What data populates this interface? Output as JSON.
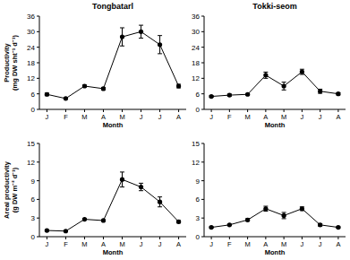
{
  "chart_data": [
    {
      "type": "line",
      "title": "Tongbatarl",
      "y_label": [
        "Productivity",
        "(mg DW sht⁻¹ d⁻¹)"
      ],
      "x_label": "Month",
      "categories": [
        "J",
        "F",
        "M",
        "A",
        "M",
        "J",
        "J",
        "A"
      ],
      "values": [
        5.8,
        4.2,
        9.0,
        8.0,
        28.0,
        30.0,
        25.0,
        9.0
      ],
      "errors": [
        0.5,
        0.3,
        0.4,
        0.5,
        3.5,
        2.5,
        3.5,
        0.7
      ],
      "ylim": [
        0,
        36
      ],
      "yticks": [
        0,
        6,
        12,
        18,
        24,
        30,
        36
      ],
      "color": "#000000",
      "marker": "circle",
      "line_style": "solid"
    },
    {
      "type": "line",
      "title": "Tokki-seom",
      "x_label": "Month",
      "categories": [
        "J",
        "F",
        "M",
        "A",
        "M",
        "J",
        "J",
        "A"
      ],
      "values": [
        5.0,
        5.5,
        5.8,
        13.2,
        9.0,
        14.5,
        7.0,
        6.0
      ],
      "errors": [
        0.3,
        0.4,
        0.3,
        1.2,
        1.5,
        1.0,
        0.8,
        0.4
      ],
      "ylim": [
        0,
        36
      ],
      "yticks": [
        0,
        6,
        12,
        18,
        24,
        30,
        36
      ],
      "color": "#000000",
      "marker": "circle",
      "line_style": "solid"
    },
    {
      "type": "line",
      "y_label": [
        "Areal productivity",
        "(g DW m⁻² d⁻¹)"
      ],
      "x_label": "Month",
      "categories": [
        "J",
        "F",
        "M",
        "A",
        "M",
        "J",
        "J",
        "A"
      ],
      "values": [
        1.0,
        0.9,
        2.8,
        2.6,
        9.2,
        8.0,
        5.6,
        2.4
      ],
      "errors": [
        0.1,
        0.1,
        0.1,
        0.1,
        1.2,
        0.6,
        0.8,
        0.2
      ],
      "ylim": [
        0,
        15
      ],
      "yticks": [
        0,
        3,
        6,
        9,
        12,
        15
      ],
      "color": "#000000",
      "marker": "circle",
      "line_style": "solid"
    },
    {
      "type": "line",
      "x_label": "Month",
      "categories": [
        "J",
        "F",
        "M",
        "A",
        "M",
        "J",
        "J",
        "A"
      ],
      "values": [
        1.5,
        1.9,
        2.7,
        4.5,
        3.4,
        4.5,
        1.9,
        1.5
      ],
      "errors": [
        0.1,
        0.1,
        0.2,
        0.4,
        0.5,
        0.3,
        0.2,
        0.1
      ],
      "ylim": [
        0,
        15
      ],
      "yticks": [
        0,
        3,
        6,
        9,
        12,
        15
      ],
      "color": "#000000",
      "marker": "circle",
      "line_style": "solid"
    }
  ]
}
